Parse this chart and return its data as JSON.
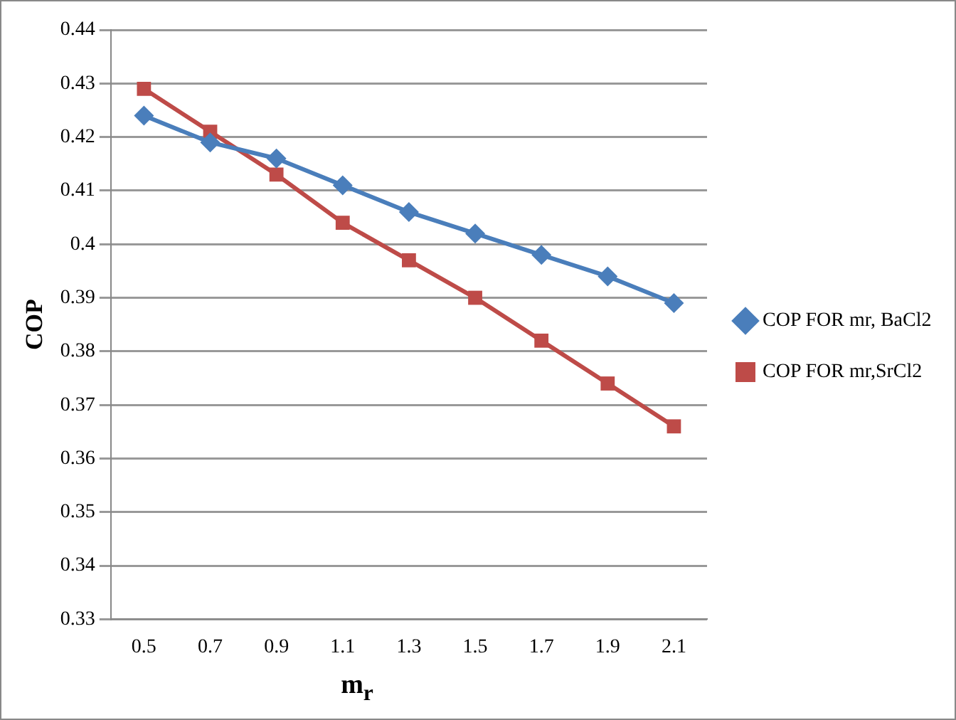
{
  "chart_data": {
    "type": "line",
    "xlabel": "m$_{r}$",
    "ylabel": "COP",
    "categories": [
      "0.5",
      "0.7",
      "0.9",
      "1.1",
      "1.3",
      "1.5",
      "1.7",
      "1.9",
      "2.1"
    ],
    "series": [
      {
        "name": "COP FOR mr, BaCl2",
        "color": "#4a7ebb",
        "marker": "diamond",
        "values": [
          0.424,
          0.419,
          0.416,
          0.411,
          0.406,
          0.402,
          0.398,
          0.394,
          0.389
        ]
      },
      {
        "name": "COP FOR mr,SrCl2",
        "color": "#be4b48",
        "marker": "square",
        "values": [
          0.429,
          0.421,
          0.413,
          0.404,
          0.397,
          0.39,
          0.382,
          0.374,
          0.366
        ]
      }
    ],
    "ylim": [
      0.33,
      0.44
    ],
    "yticks": [
      0.33,
      0.34,
      0.35,
      0.36,
      0.37,
      0.38,
      0.39,
      0.4,
      0.41,
      0.42,
      0.43,
      0.44
    ],
    "grid": "y",
    "legend": "right",
    "line_style": "solid"
  }
}
